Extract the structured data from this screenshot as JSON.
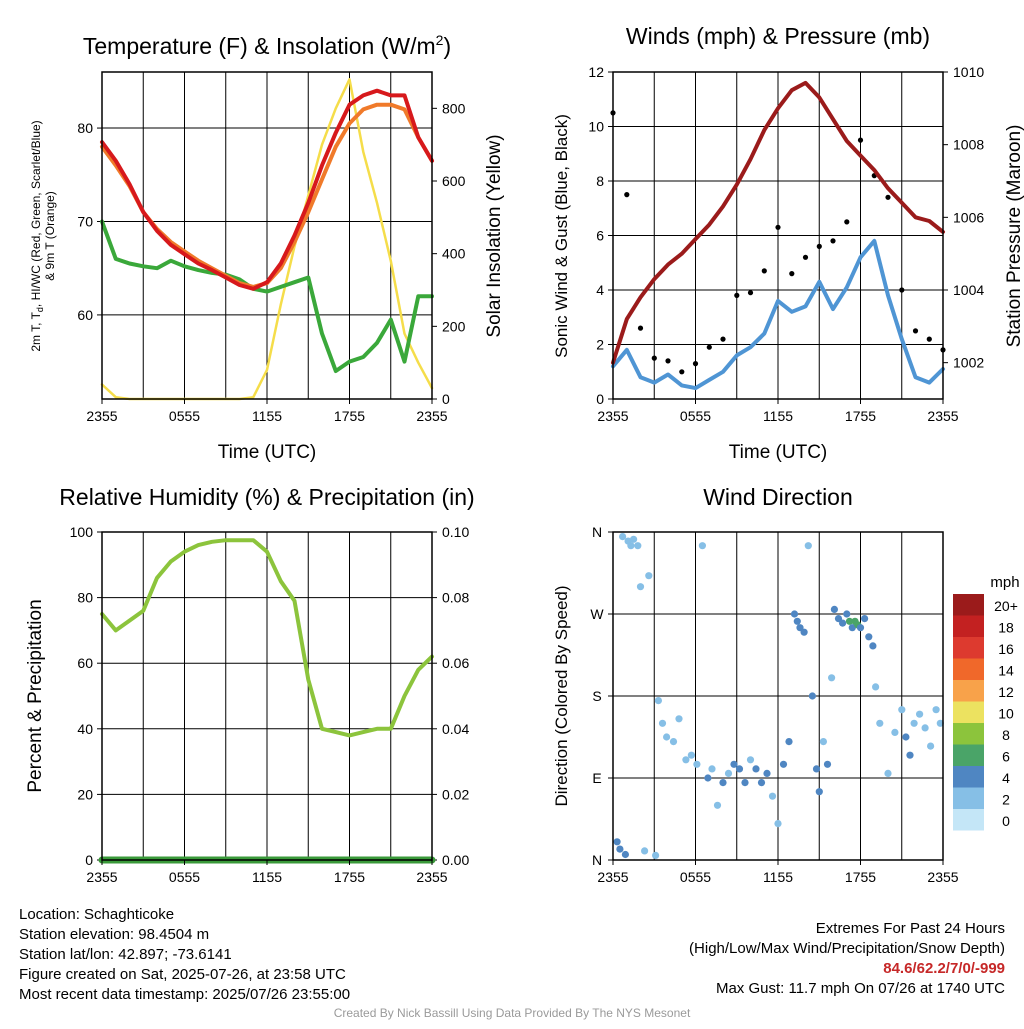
{
  "colors": {
    "temp": "#d7191c",
    "heat_index": "#9b1d1d",
    "temp_9m": "#f07a2a",
    "dewpoint": "#3aa83a",
    "insolation": "#f5dd4a",
    "pressure": "#9b1b1b",
    "wind": "#4f95d4",
    "gust": "#000000",
    "rh": "#8cc43c",
    "precip": "#3a9a3a",
    "extremes_text": "#c62828"
  },
  "panels": {
    "temperature": {
      "title_main": "Temperature (F) & Insolation (W/m",
      "title_sup": "2",
      "title_end": ")",
      "ylabel_left_1": "2m T, T",
      "ylabel_left_sub": "d",
      "ylabel_left_2": ", HI/WC (Red, Green, Scarlet/Blue)",
      "ylabel_left_3": "& 9m T (Orange)",
      "ylabel_right": "Solar Insolation (Yellow)",
      "xlabel": "Time (UTC)"
    },
    "winds": {
      "title": "Winds (mph) & Pressure (mb)",
      "ylabel_left": "Sonic Wind & Gust (Blue, Black)",
      "ylabel_right": "Station Pressure (Maroon)",
      "xlabel": "Time (UTC)"
    },
    "humidity": {
      "title": "Relative Humidity (%) & Precipitation (in)",
      "ylabel_left": "Percent & Precipitation"
    },
    "direction": {
      "title": "Wind Direction",
      "ylabel_left": "Direction (Colored By Speed)",
      "legend_title": "mph",
      "legend_labels": [
        "20+",
        "18",
        "16",
        "14",
        "12",
        "10",
        "8",
        "6",
        "4",
        "2",
        "0"
      ],
      "legend_colors": [
        "#9b1b1b",
        "#c32121",
        "#dd3a2f",
        "#f0682a",
        "#f8a24a",
        "#ece260",
        "#8cc43c",
        "#4aa468",
        "#4f86c2",
        "#86bfe6",
        "#c4e6f7"
      ]
    }
  },
  "chart_data": [
    {
      "type": "line",
      "title": "Temperature (F) & Insolation (W/m2)",
      "xlabel": "Time (UTC)",
      "ylabel": "2m T, Td, HI/WC (Red, Green, Scarlet/Blue) & 9m T (Orange)",
      "y2label": "Solar Insolation (Yellow)",
      "x_ticks": [
        "2355",
        "0555",
        "1155",
        "1755",
        "2355"
      ],
      "ylim": [
        51,
        86
      ],
      "y_ticks": [
        60,
        70,
        80
      ],
      "y2lim": [
        0,
        900
      ],
      "y2_ticks": [
        0,
        200,
        400,
        600,
        800
      ],
      "x_hours": [
        0,
        1,
        2,
        3,
        4,
        5,
        6,
        7,
        8,
        9,
        10,
        11,
        12,
        13,
        14,
        15,
        16,
        17,
        18,
        19,
        20,
        21,
        22,
        23,
        24
      ],
      "series": [
        {
          "name": "2m T",
          "axis": "left",
          "values": [
            78.5,
            76.5,
            74,
            71,
            69,
            67.5,
            66.5,
            65.5,
            64.8,
            64,
            63.2,
            62.8,
            63.5,
            65.5,
            68.5,
            72,
            76,
            79.5,
            82.5,
            83.5,
            84,
            83.5,
            83.5,
            79,
            76.5
          ]
        },
        {
          "name": "9m T",
          "axis": "left",
          "values": [
            78,
            76,
            73.8,
            71,
            69.2,
            67.8,
            66.8,
            65.8,
            65,
            64.2,
            63.4,
            63,
            63.4,
            65,
            67.8,
            71,
            74.5,
            78,
            80.5,
            82,
            82.5,
            82.5,
            82,
            79,
            76.5
          ]
        },
        {
          "name": "Td",
          "axis": "left",
          "values": [
            70,
            66,
            65.5,
            65.2,
            65,
            65.8,
            65.2,
            64.8,
            64.5,
            64.3,
            63.8,
            62.8,
            62.5,
            63,
            63.5,
            64,
            58,
            54,
            55,
            55.5,
            57,
            59.5,
            55,
            62,
            62
          ]
        },
        {
          "name": "Solar Insolation",
          "axis": "right",
          "values": [
            40,
            5,
            0,
            0,
            0,
            0,
            0,
            0,
            0,
            0,
            0,
            5,
            80,
            260,
            420,
            560,
            700,
            800,
            880,
            680,
            540,
            380,
            180,
            100,
            30
          ]
        }
      ]
    },
    {
      "type": "line",
      "title": "Winds (mph) & Pressure (mb)",
      "xlabel": "Time (UTC)",
      "ylabel": "Sonic Wind & Gust (Blue, Black)",
      "y2label": "Station Pressure (Maroon)",
      "x_ticks": [
        "2355",
        "0555",
        "1155",
        "1755",
        "2355"
      ],
      "ylim": [
        0,
        12
      ],
      "y_ticks": [
        0,
        2,
        4,
        6,
        8,
        10,
        12
      ],
      "y2lim": [
        1001,
        1010
      ],
      "y2_ticks": [
        1002,
        1004,
        1006,
        1008,
        1010
      ],
      "x_hours": [
        0,
        1,
        2,
        3,
        4,
        5,
        6,
        7,
        8,
        9,
        10,
        11,
        12,
        13,
        14,
        15,
        16,
        17,
        18,
        19,
        20,
        21,
        22,
        23,
        24
      ],
      "series": [
        {
          "name": "Station Pressure",
          "axis": "right",
          "values": [
            1002.0,
            1003.2,
            1003.8,
            1004.3,
            1004.7,
            1005.0,
            1005.4,
            1005.8,
            1006.3,
            1006.9,
            1007.6,
            1008.4,
            1009.0,
            1009.5,
            1009.7,
            1009.3,
            1008.7,
            1008.1,
            1007.7,
            1007.3,
            1006.8,
            1006.4,
            1006.0,
            1005.9,
            1005.6
          ]
        },
        {
          "name": "Sonic Wind",
          "axis": "left",
          "values": [
            1.2,
            1.8,
            0.8,
            0.6,
            0.9,
            0.5,
            0.4,
            0.7,
            1.0,
            1.6,
            1.9,
            2.4,
            3.6,
            3.2,
            3.4,
            4.3,
            3.3,
            4.1,
            5.2,
            5.8,
            3.8,
            2.2,
            0.8,
            0.6,
            1.1
          ]
        },
        {
          "name": "Gust",
          "axis": "left",
          "values": [
            10.5,
            7.5,
            2.6,
            1.5,
            1.4,
            1.0,
            1.3,
            1.9,
            2.2,
            3.8,
            3.9,
            4.7,
            6.3,
            4.6,
            5.2,
            5.6,
            5.8,
            6.5,
            9.5,
            8.2,
            7.4,
            4.0,
            2.5,
            2.2,
            1.8
          ]
        }
      ]
    },
    {
      "type": "line",
      "title": "Relative Humidity (%) & Precipitation (in)",
      "ylabel": "Percent & Precipitation",
      "x_ticks": [
        "2355",
        "0555",
        "1155",
        "1755",
        "2355"
      ],
      "ylim": [
        0,
        100
      ],
      "y_ticks": [
        0,
        20,
        40,
        60,
        80,
        100
      ],
      "y2lim": [
        0,
        0.1
      ],
      "y2_ticks": [
        "0.00",
        "0.02",
        "0.04",
        "0.06",
        "0.08",
        "0.10"
      ],
      "x_hours": [
        0,
        1,
        2,
        3,
        4,
        5,
        6,
        7,
        8,
        9,
        10,
        11,
        12,
        13,
        14,
        15,
        16,
        17,
        18,
        19,
        20,
        21,
        22,
        23,
        24
      ],
      "series": [
        {
          "name": "Relative Humidity",
          "axis": "left",
          "values": [
            75,
            70,
            73,
            76,
            86,
            91,
            94,
            96,
            97,
            97.5,
            97.5,
            97.5,
            94,
            85,
            79,
            55,
            40,
            39,
            38,
            39,
            40,
            40,
            50,
            58,
            62
          ]
        },
        {
          "name": "Precipitation",
          "axis": "right",
          "values": [
            0,
            0,
            0,
            0,
            0,
            0,
            0,
            0,
            0,
            0,
            0,
            0,
            0,
            0,
            0,
            0,
            0,
            0,
            0,
            0,
            0,
            0,
            0,
            0,
            0
          ]
        }
      ]
    },
    {
      "type": "scatter",
      "title": "Wind Direction",
      "ylabel": "Direction (Colored By Speed)",
      "x_ticks": [
        "2355",
        "0555",
        "1155",
        "1755",
        "2355"
      ],
      "y_ticks": [
        "N",
        "E",
        "S",
        "W",
        "N"
      ],
      "ylim": [
        0,
        360
      ],
      "color_scale": "mph",
      "points": [
        {
          "x": 0.3,
          "y": 20,
          "speed": 3
        },
        {
          "x": 0.5,
          "y": 12,
          "speed": 4
        },
        {
          "x": 0.7,
          "y": 355,
          "speed": 1
        },
        {
          "x": 0.9,
          "y": 6,
          "speed": 3
        },
        {
          "x": 1.1,
          "y": 350,
          "speed": 1
        },
        {
          "x": 1.3,
          "y": 345,
          "speed": 1
        },
        {
          "x": 1.5,
          "y": 352,
          "speed": 1
        },
        {
          "x": 1.8,
          "y": 345,
          "speed": 1
        },
        {
          "x": 2.0,
          "y": 300,
          "speed": 1
        },
        {
          "x": 2.3,
          "y": 10,
          "speed": 1
        },
        {
          "x": 2.6,
          "y": 312,
          "speed": 1
        },
        {
          "x": 3.1,
          "y": 5,
          "speed": 1
        },
        {
          "x": 3.3,
          "y": 175,
          "speed": 1
        },
        {
          "x": 3.6,
          "y": 150,
          "speed": 1
        },
        {
          "x": 3.9,
          "y": 135,
          "speed": 1
        },
        {
          "x": 4.4,
          "y": 130,
          "speed": 1
        },
        {
          "x": 4.8,
          "y": 155,
          "speed": 1
        },
        {
          "x": 5.3,
          "y": 110,
          "speed": 2
        },
        {
          "x": 5.7,
          "y": 115,
          "speed": 1
        },
        {
          "x": 6.1,
          "y": 105,
          "speed": 1
        },
        {
          "x": 6.5,
          "y": 345,
          "speed": 1
        },
        {
          "x": 6.9,
          "y": 90,
          "speed": 3
        },
        {
          "x": 7.2,
          "y": 100,
          "speed": 1
        },
        {
          "x": 7.6,
          "y": 60,
          "speed": 1
        },
        {
          "x": 8.0,
          "y": 85,
          "speed": 4
        },
        {
          "x": 8.4,
          "y": 95,
          "speed": 2
        },
        {
          "x": 8.8,
          "y": 105,
          "speed": 3
        },
        {
          "x": 9.2,
          "y": 100,
          "speed": 4
        },
        {
          "x": 9.6,
          "y": 85,
          "speed": 3
        },
        {
          "x": 10.0,
          "y": 110,
          "speed": 1
        },
        {
          "x": 10.4,
          "y": 100,
          "speed": 4
        },
        {
          "x": 10.8,
          "y": 85,
          "speed": 4
        },
        {
          "x": 11.2,
          "y": 95,
          "speed": 3
        },
        {
          "x": 11.6,
          "y": 70,
          "speed": 1
        },
        {
          "x": 12.0,
          "y": 40,
          "speed": 1
        },
        {
          "x": 12.4,
          "y": 105,
          "speed": 3
        },
        {
          "x": 12.8,
          "y": 130,
          "speed": 3
        },
        {
          "x": 13.2,
          "y": 270,
          "speed": 3
        },
        {
          "x": 13.4,
          "y": 262,
          "speed": 4
        },
        {
          "x": 13.6,
          "y": 255,
          "speed": 3
        },
        {
          "x": 13.9,
          "y": 250,
          "speed": 3
        },
        {
          "x": 14.2,
          "y": 345,
          "speed": 1
        },
        {
          "x": 14.5,
          "y": 180,
          "speed": 3
        },
        {
          "x": 14.8,
          "y": 100,
          "speed": 3
        },
        {
          "x": 15.0,
          "y": 75,
          "speed": 4
        },
        {
          "x": 15.3,
          "y": 130,
          "speed": 1
        },
        {
          "x": 15.6,
          "y": 105,
          "speed": 4
        },
        {
          "x": 15.9,
          "y": 200,
          "speed": 1
        },
        {
          "x": 16.1,
          "y": 275,
          "speed": 4
        },
        {
          "x": 16.4,
          "y": 265,
          "speed": 4
        },
        {
          "x": 16.7,
          "y": 260,
          "speed": 4
        },
        {
          "x": 17.0,
          "y": 270,
          "speed": 3
        },
        {
          "x": 17.2,
          "y": 262,
          "speed": 6
        },
        {
          "x": 17.4,
          "y": 255,
          "speed": 4
        },
        {
          "x": 17.6,
          "y": 262,
          "speed": 6
        },
        {
          "x": 17.8,
          "y": 258,
          "speed": 6
        },
        {
          "x": 18.0,
          "y": 255,
          "speed": 4
        },
        {
          "x": 18.3,
          "y": 265,
          "speed": 4
        },
        {
          "x": 18.6,
          "y": 245,
          "speed": 3
        },
        {
          "x": 18.9,
          "y": 235,
          "speed": 3
        },
        {
          "x": 19.1,
          "y": 190,
          "speed": 1
        },
        {
          "x": 19.4,
          "y": 150,
          "speed": 1
        },
        {
          "x": 20.0,
          "y": 95,
          "speed": 1
        },
        {
          "x": 20.5,
          "y": 140,
          "speed": 1
        },
        {
          "x": 21.0,
          "y": 165,
          "speed": 1
        },
        {
          "x": 21.3,
          "y": 135,
          "speed": 3
        },
        {
          "x": 21.6,
          "y": 115,
          "speed": 3
        },
        {
          "x": 21.9,
          "y": 150,
          "speed": 1
        },
        {
          "x": 22.3,
          "y": 160,
          "speed": 1
        },
        {
          "x": 22.7,
          "y": 145,
          "speed": 1
        },
        {
          "x": 23.1,
          "y": 125,
          "speed": 1
        },
        {
          "x": 23.5,
          "y": 165,
          "speed": 1
        },
        {
          "x": 23.8,
          "y": 150,
          "speed": 1
        }
      ]
    }
  ],
  "info_left": {
    "location": "Location: Schaghticoke",
    "elevation": "Station elevation: 98.4504 m",
    "latlon": "Station lat/lon: 42.897; -73.6141",
    "created": "Figure created on Sat, 2025-07-26, at 23:58 UTC",
    "recent": "Most recent data timestamp: 2025/07/26 23:55:00"
  },
  "info_right": {
    "extremes_title": "Extremes For Past 24 Hours",
    "extremes_legend": "(High/Low/Max Wind/Precipitation/Snow Depth)",
    "extremes_values": "84.6/62.2/7/0/-999",
    "max_gust": "Max Gust: 11.7 mph On 07/26 at 1740 UTC"
  },
  "credit": "Created By Nick Bassill Using Data Provided By The NYS Mesonet"
}
